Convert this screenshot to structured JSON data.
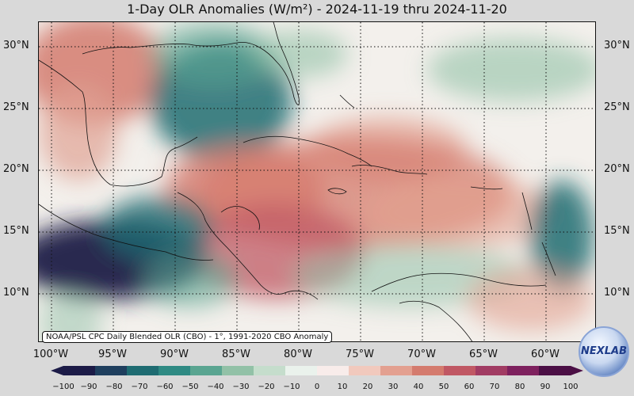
{
  "title": "1-Day OLR Anomalies (W/m²) - 2024-11-19 thru 2024-11-20",
  "credit": "NOAA/PSL CPC Daily Blended OLR (CBO) - 1°, 1991-2020 CBO Anomaly",
  "logo": {
    "text": "NEXLAB",
    "icon": "nexlab-logo-icon"
  },
  "latitude_labels": [
    "30°N",
    "25°N",
    "20°N",
    "15°N",
    "10°N"
  ],
  "longitude_labels": [
    "100°W",
    "95°W",
    "90°W",
    "85°W",
    "80°W",
    "75°W",
    "70°W",
    "65°W",
    "60°W"
  ],
  "colorbar": {
    "ticks": [
      "−100",
      "−90",
      "−80",
      "−70",
      "−60",
      "−50",
      "−40",
      "−30",
      "−20",
      "−10",
      "0",
      "10",
      "20",
      "30",
      "40",
      "50",
      "60",
      "70",
      "80",
      "90",
      "100"
    ],
    "colors": [
      "#1c1b47",
      "#1f3f5e",
      "#1f6c72",
      "#2f8a83",
      "#5aa591",
      "#92c1a7",
      "#c5ddcc",
      "#eaf2ec",
      "#f8ecea",
      "#f1c9bd",
      "#e3a090",
      "#d47b6e",
      "#c05864",
      "#a13c63",
      "#7e215e",
      "#4b0f45"
    ]
  },
  "colors": {
    "positive": "#d47b6e",
    "strong_positive": "#b9566a",
    "negative": "#2f8a83",
    "strong_negative": "#1c1b47"
  }
}
